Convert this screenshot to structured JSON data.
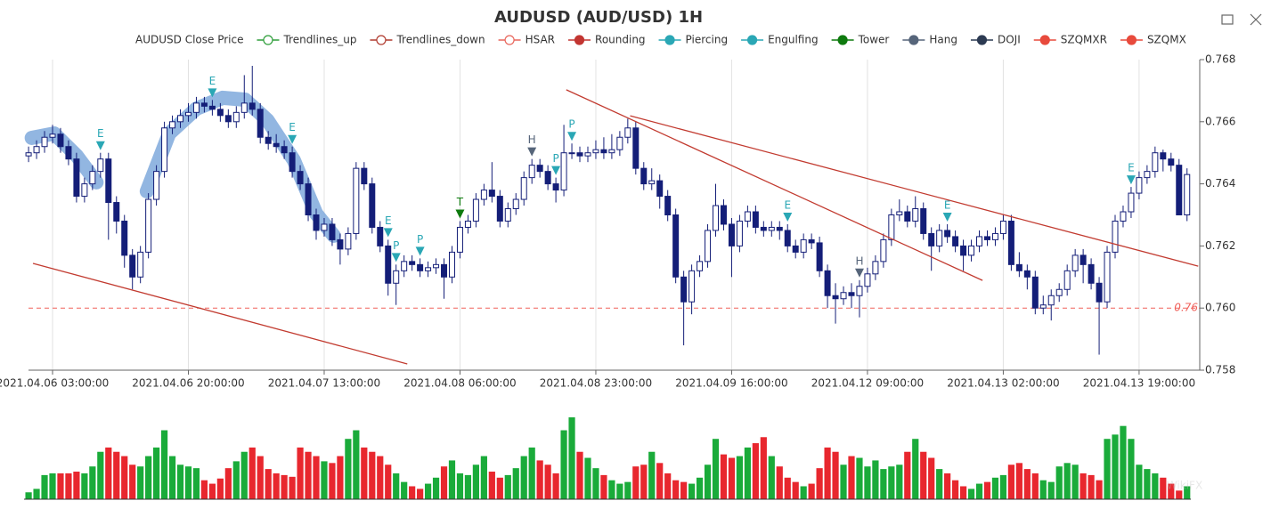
{
  "chart_data": {
    "type": "candlestick",
    "title": "AUDUSD (AUD/USD) 1H",
    "legend": [
      {
        "name": "AUDUSD Close Price",
        "style": "none",
        "color": "#333333"
      },
      {
        "name": "Trendlines_up",
        "style": "hollow",
        "color": "#2e9e3a"
      },
      {
        "name": "Trendlines_down",
        "style": "hollow",
        "color": "#b03a2e"
      },
      {
        "name": "HSAR",
        "style": "hollow",
        "color": "#e8665c"
      },
      {
        "name": "Rounding",
        "style": "dot",
        "color": "#c23531"
      },
      {
        "name": "Piercing",
        "style": "dot",
        "color": "#2aa7b5"
      },
      {
        "name": "Engulfing",
        "style": "dot",
        "color": "#2aa7b5"
      },
      {
        "name": "Tower",
        "style": "dot",
        "color": "#0e7a0e"
      },
      {
        "name": "Hang",
        "style": "dot",
        "color": "#56657a"
      },
      {
        "name": "DOJI",
        "style": "dot",
        "color": "#2c3a52"
      },
      {
        "name": "SZQMXR",
        "style": "dot",
        "color": "#e84a3c"
      },
      {
        "name": "SZQMX",
        "style": "dot",
        "color": "#e84a3c"
      }
    ],
    "categories": [
      null,
      null,
      null,
      "2021.04.06 03:00:00",
      null,
      null,
      null,
      null,
      null,
      null,
      null,
      null,
      null,
      null,
      null,
      null,
      null,
      null,
      null,
      null,
      "2021.04.06 20:00:00",
      null,
      null,
      null,
      null,
      null,
      null,
      null,
      null,
      null,
      null,
      null,
      null,
      null,
      null,
      null,
      null,
      "2021.04.07 13:00:00",
      null,
      null,
      null,
      null,
      null,
      null,
      null,
      null,
      null,
      null,
      null,
      null,
      null,
      null,
      null,
      null,
      "2021.04.08 06:00:00",
      null,
      null,
      null,
      null,
      null,
      null,
      null,
      null,
      null,
      null,
      null,
      null,
      null,
      null,
      null,
      null,
      "2021.04.08 23:00:00",
      null,
      null,
      null,
      null,
      null,
      null,
      null,
      null,
      null,
      null,
      null,
      null,
      null,
      null,
      null,
      null,
      "2021.04.09 16:00:00",
      null,
      null,
      null,
      null,
      null,
      null,
      null,
      null,
      null,
      null,
      null,
      null,
      null,
      null,
      null,
      null,
      "2021.04.12 09:00:00",
      null,
      null,
      null,
      null,
      null,
      null,
      null,
      null,
      null,
      null,
      null,
      null,
      null,
      null,
      null,
      null,
      "2021.04.13 02:00:00",
      null,
      null,
      null,
      null,
      null,
      null,
      null,
      null,
      null,
      null,
      null,
      null,
      null,
      null,
      null,
      null,
      "2021.04.13 19:00:00",
      null,
      null,
      null,
      null,
      null,
      null
    ],
    "ohlc": [
      [
        0.7649,
        0.7652,
        0.7647,
        0.765
      ],
      [
        0.765,
        0.7654,
        0.7648,
        0.7652
      ],
      [
        0.7652,
        0.7657,
        0.765,
        0.7655
      ],
      [
        0.7655,
        0.7659,
        0.7653,
        0.7656
      ],
      [
        0.7656,
        0.7658,
        0.765,
        0.7652
      ],
      [
        0.7652,
        0.7654,
        0.7646,
        0.7648
      ],
      [
        0.7648,
        0.765,
        0.7634,
        0.7636
      ],
      [
        0.7636,
        0.7642,
        0.7634,
        0.764
      ],
      [
        0.764,
        0.7646,
        0.7638,
        0.7644
      ],
      [
        0.7644,
        0.765,
        0.7642,
        0.7648
      ],
      [
        0.7648,
        0.765,
        0.7622,
        0.7634
      ],
      [
        0.7634,
        0.7636,
        0.7624,
        0.7628
      ],
      [
        0.7628,
        0.763,
        0.7613,
        0.7617
      ],
      [
        0.7617,
        0.7619,
        0.7606,
        0.761
      ],
      [
        0.761,
        0.762,
        0.7608,
        0.7618
      ],
      [
        0.7618,
        0.7637,
        0.7616,
        0.7635
      ],
      [
        0.7635,
        0.7646,
        0.7633,
        0.7644
      ],
      [
        0.7644,
        0.766,
        0.7642,
        0.7658
      ],
      [
        0.7658,
        0.7662,
        0.7656,
        0.766
      ],
      [
        0.766,
        0.7664,
        0.7658,
        0.7662
      ],
      [
        0.7662,
        0.7666,
        0.766,
        0.7663
      ],
      [
        0.7663,
        0.7668,
        0.7661,
        0.7666
      ],
      [
        0.7666,
        0.7668,
        0.7663,
        0.7665
      ],
      [
        0.7665,
        0.7667,
        0.7662,
        0.7664
      ],
      [
        0.7664,
        0.7666,
        0.766,
        0.7662
      ],
      [
        0.7662,
        0.7664,
        0.7658,
        0.766
      ],
      [
        0.766,
        0.7665,
        0.7658,
        0.7663
      ],
      [
        0.7663,
        0.7675,
        0.7661,
        0.7666
      ],
      [
        0.7666,
        0.7678,
        0.7662,
        0.7664
      ],
      [
        0.7664,
        0.7666,
        0.7653,
        0.7655
      ],
      [
        0.7655,
        0.7657,
        0.7651,
        0.7653
      ],
      [
        0.7653,
        0.7656,
        0.765,
        0.7652
      ],
      [
        0.7652,
        0.7654,
        0.7648,
        0.765
      ],
      [
        0.765,
        0.7652,
        0.7642,
        0.7644
      ],
      [
        0.7644,
        0.7646,
        0.7638,
        0.764
      ],
      [
        0.764,
        0.7642,
        0.7628,
        0.763
      ],
      [
        0.763,
        0.7632,
        0.7622,
        0.7625
      ],
      [
        0.7625,
        0.7629,
        0.7623,
        0.7627
      ],
      [
        0.7627,
        0.7629,
        0.762,
        0.7622
      ],
      [
        0.7622,
        0.7624,
        0.7614,
        0.7619
      ],
      [
        0.7619,
        0.7626,
        0.7617,
        0.7624
      ],
      [
        0.7624,
        0.7647,
        0.7622,
        0.7645
      ],
      [
        0.7645,
        0.7647,
        0.7638,
        0.764
      ],
      [
        0.764,
        0.7642,
        0.7624,
        0.7626
      ],
      [
        0.7626,
        0.7628,
        0.7618,
        0.762
      ],
      [
        0.762,
        0.7622,
        0.7604,
        0.7608
      ],
      [
        0.7608,
        0.7614,
        0.7601,
        0.7612
      ],
      [
        0.7612,
        0.7617,
        0.761,
        0.7615
      ],
      [
        0.7615,
        0.7617,
        0.7612,
        0.7614
      ],
      [
        0.7614,
        0.7616,
        0.761,
        0.7612
      ],
      [
        0.7612,
        0.7615,
        0.761,
        0.7613
      ],
      [
        0.7613,
        0.7616,
        0.7611,
        0.7614
      ],
      [
        0.7614,
        0.7616,
        0.7603,
        0.761
      ],
      [
        0.761,
        0.762,
        0.7608,
        0.7618
      ],
      [
        0.7618,
        0.7628,
        0.7616,
        0.7626
      ],
      [
        0.7626,
        0.763,
        0.7624,
        0.7628
      ],
      [
        0.7628,
        0.7637,
        0.7626,
        0.7635
      ],
      [
        0.7635,
        0.764,
        0.7633,
        0.7638
      ],
      [
        0.7638,
        0.7647,
        0.7634,
        0.7636
      ],
      [
        0.7636,
        0.7638,
        0.7626,
        0.7628
      ],
      [
        0.7628,
        0.7634,
        0.7626,
        0.7632
      ],
      [
        0.7632,
        0.7637,
        0.763,
        0.7635
      ],
      [
        0.7635,
        0.7644,
        0.7633,
        0.7642
      ],
      [
        0.7642,
        0.7648,
        0.764,
        0.7646
      ],
      [
        0.7646,
        0.7648,
        0.7642,
        0.7644
      ],
      [
        0.7644,
        0.7646,
        0.7638,
        0.764
      ],
      [
        0.764,
        0.7642,
        0.7634,
        0.7638
      ],
      [
        0.7638,
        0.7659,
        0.7636,
        0.765
      ],
      [
        0.765,
        0.7653,
        0.7648,
        0.765
      ],
      [
        0.765,
        0.7652,
        0.7647,
        0.7649
      ],
      [
        0.7649,
        0.7652,
        0.7647,
        0.765
      ],
      [
        0.765,
        0.7654,
        0.7648,
        0.7651
      ],
      [
        0.7651,
        0.7655,
        0.7648,
        0.765
      ],
      [
        0.765,
        0.7656,
        0.7648,
        0.7651
      ],
      [
        0.7651,
        0.7657,
        0.7649,
        0.7655
      ],
      [
        0.7655,
        0.7661,
        0.7653,
        0.7658
      ],
      [
        0.7658,
        0.766,
        0.7643,
        0.7645
      ],
      [
        0.7645,
        0.7647,
        0.7638,
        0.764
      ],
      [
        0.764,
        0.7645,
        0.7638,
        0.7641
      ],
      [
        0.7641,
        0.7643,
        0.7632,
        0.7636
      ],
      [
        0.7636,
        0.7638,
        0.7628,
        0.763
      ],
      [
        0.763,
        0.7632,
        0.7608,
        0.761
      ],
      [
        0.761,
        0.7612,
        0.7588,
        0.7602
      ],
      [
        0.7602,
        0.7614,
        0.7598,
        0.7612
      ],
      [
        0.7612,
        0.7617,
        0.761,
        0.7615
      ],
      [
        0.7615,
        0.7627,
        0.7613,
        0.7625
      ],
      [
        0.7625,
        0.764,
        0.7623,
        0.7633
      ],
      [
        0.7633,
        0.7635,
        0.7625,
        0.7627
      ],
      [
        0.7627,
        0.7629,
        0.761,
        0.762
      ],
      [
        0.762,
        0.763,
        0.7618,
        0.7628
      ],
      [
        0.7628,
        0.7633,
        0.7626,
        0.7631
      ],
      [
        0.7631,
        0.7633,
        0.7624,
        0.7626
      ],
      [
        0.7626,
        0.7628,
        0.7623,
        0.7625
      ],
      [
        0.7625,
        0.7628,
        0.7623,
        0.7626
      ],
      [
        0.7626,
        0.7628,
        0.7622,
        0.7625
      ],
      [
        0.7625,
        0.7627,
        0.7618,
        0.762
      ],
      [
        0.762,
        0.7622,
        0.7616,
        0.7618
      ],
      [
        0.7618,
        0.7624,
        0.7616,
        0.7622
      ],
      [
        0.7622,
        0.7624,
        0.7619,
        0.7621
      ],
      [
        0.7621,
        0.7623,
        0.761,
        0.7612
      ],
      [
        0.7612,
        0.7614,
        0.76,
        0.7604
      ],
      [
        0.7604,
        0.7608,
        0.7595,
        0.7603
      ],
      [
        0.7603,
        0.7607,
        0.7601,
        0.7605
      ],
      [
        0.7605,
        0.7608,
        0.76,
        0.7604
      ],
      [
        0.7604,
        0.7609,
        0.7597,
        0.7607
      ],
      [
        0.7607,
        0.7613,
        0.7605,
        0.7611
      ],
      [
        0.7611,
        0.7617,
        0.7609,
        0.7615
      ],
      [
        0.7615,
        0.7624,
        0.7613,
        0.7622
      ],
      [
        0.7622,
        0.7632,
        0.762,
        0.763
      ],
      [
        0.763,
        0.7635,
        0.7628,
        0.7631
      ],
      [
        0.7631,
        0.7633,
        0.7626,
        0.7628
      ],
      [
        0.7628,
        0.7636,
        0.7626,
        0.7632
      ],
      [
        0.7632,
        0.7634,
        0.7622,
        0.7624
      ],
      [
        0.7624,
        0.7626,
        0.7612,
        0.762
      ],
      [
        0.762,
        0.7627,
        0.7618,
        0.7625
      ],
      [
        0.7625,
        0.7627,
        0.7621,
        0.7623
      ],
      [
        0.7623,
        0.7625,
        0.7618,
        0.762
      ],
      [
        0.762,
        0.7622,
        0.7612,
        0.7617
      ],
      [
        0.7617,
        0.7622,
        0.7615,
        0.762
      ],
      [
        0.762,
        0.7625,
        0.7618,
        0.7623
      ],
      [
        0.7623,
        0.7625,
        0.762,
        0.7622
      ],
      [
        0.7622,
        0.7626,
        0.762,
        0.7624
      ],
      [
        0.7624,
        0.763,
        0.7622,
        0.7628
      ],
      [
        0.7628,
        0.763,
        0.7612,
        0.7614
      ],
      [
        0.7614,
        0.7618,
        0.761,
        0.7612
      ],
      [
        0.7612,
        0.7614,
        0.7606,
        0.761
      ],
      [
        0.761,
        0.7612,
        0.7598,
        0.76
      ],
      [
        0.76,
        0.7604,
        0.7598,
        0.7601
      ],
      [
        0.7601,
        0.7606,
        0.7596,
        0.7604
      ],
      [
        0.7604,
        0.7608,
        0.7602,
        0.7606
      ],
      [
        0.7606,
        0.7614,
        0.7604,
        0.7612
      ],
      [
        0.7612,
        0.7619,
        0.761,
        0.7617
      ],
      [
        0.7617,
        0.7619,
        0.7608,
        0.7614
      ],
      [
        0.7614,
        0.7616,
        0.7606,
        0.7608
      ],
      [
        0.7608,
        0.761,
        0.7585,
        0.7602
      ],
      [
        0.7602,
        0.762,
        0.76,
        0.7618
      ],
      [
        0.7618,
        0.763,
        0.7616,
        0.7628
      ],
      [
        0.7628,
        0.7633,
        0.7626,
        0.7631
      ],
      [
        0.7631,
        0.7639,
        0.7629,
        0.7637
      ],
      [
        0.7637,
        0.7644,
        0.7635,
        0.7642
      ],
      [
        0.7642,
        0.7646,
        0.764,
        0.7644
      ],
      [
        0.7644,
        0.7652,
        0.7642,
        0.765
      ],
      [
        0.765,
        0.7651,
        0.7644,
        0.7648
      ],
      [
        0.7648,
        0.765,
        0.7644,
        0.7646
      ],
      [
        0.7646,
        0.7648,
        0.763,
        0.763
      ],
      [
        0.763,
        0.7645,
        0.7628,
        0.7643
      ]
    ],
    "candle_color": "#141e78",
    "volume": {
      "values": [
        8,
        12,
        28,
        30,
        30,
        30,
        32,
        30,
        38,
        55,
        60,
        55,
        50,
        40,
        38,
        50,
        60,
        80,
        50,
        40,
        38,
        36,
        22,
        18,
        24,
        36,
        44,
        55,
        60,
        50,
        35,
        30,
        28,
        26,
        60,
        55,
        50,
        44,
        42,
        50,
        70,
        80,
        60,
        55,
        50,
        40,
        30,
        20,
        15,
        12,
        18,
        25,
        38,
        45,
        30,
        28,
        40,
        50,
        32,
        25,
        28,
        36,
        50,
        60,
        45,
        40,
        30,
        80,
        95,
        55,
        48,
        36,
        28,
        22,
        18,
        20,
        38,
        40,
        55,
        42,
        30,
        22,
        20,
        18,
        25,
        40,
        70,
        52,
        48,
        50,
        60,
        65,
        72,
        50,
        38,
        25,
        20,
        15,
        18,
        36,
        60,
        55,
        40,
        50,
        48,
        38,
        45,
        35,
        38,
        40,
        55,
        70,
        55,
        48,
        35,
        30,
        22,
        15,
        12,
        18,
        20,
        25,
        28,
        40,
        42,
        35,
        30,
        22,
        20,
        38,
        42,
        40,
        30,
        28,
        22,
        70,
        75,
        85,
        70,
        40,
        35,
        30,
        25,
        18,
        10,
        15
      ],
      "up_color": "#1aab3a",
      "down_color": "#e8272e"
    },
    "ylim": [
      0.758,
      0.768
    ],
    "yticks": [
      0.758,
      {
        "value": 0.76,
        "label": "0.760"
      },
      0.762,
      0.764,
      0.766,
      0.768
    ],
    "grid": true,
    "hsar": {
      "value": 0.76,
      "color": "#f0605a"
    },
    "trendlines": {
      "color": "#c23b30",
      "lines": [
        {
          "x": [
            0.55,
            47.4
          ],
          "y": [
            0.76144,
            0.7582
          ]
        },
        {
          "x": [
            67.3,
            119.4
          ],
          "y": [
            0.76703,
            0.76089
          ]
        },
        {
          "x": [
            75.3,
            146.4
          ],
          "y": [
            0.76619,
            0.76135
          ]
        }
      ]
    },
    "rounding": {
      "color": "#7fa9dc",
      "arcs": [
        {
          "x": [
            0.4,
            3.2,
            6,
            8.5
          ],
          "y": [
            0.76548,
            0.76562,
            0.76491,
            0.76405
          ]
        },
        {
          "x": [
            14.8,
            17.6,
            21.0,
            24.3,
            27.1,
            29.9,
            33.2,
            36.0,
            38.2
          ],
          "y": [
            0.76376,
            0.76562,
            0.76642,
            0.76677,
            0.76671,
            0.76605,
            0.76476,
            0.76304,
            0.76233
          ]
        }
      ]
    },
    "patterns": [
      {
        "label": "E",
        "index": 9,
        "color": "#2aa7b5"
      },
      {
        "label": "E",
        "index": 23,
        "color": "#2aa7b5"
      },
      {
        "label": "E",
        "index": 33,
        "color": "#2aa7b5"
      },
      {
        "label": "E",
        "index": 45,
        "color": "#2aa7b5"
      },
      {
        "label": "P",
        "index": 46,
        "color": "#2aa7b5"
      },
      {
        "label": "P",
        "index": 49,
        "color": "#2aa7b5"
      },
      {
        "label": "T",
        "index": 54,
        "color": "#0e7a0e"
      },
      {
        "label": "H",
        "index": 63,
        "color": "#56657a"
      },
      {
        "label": "P",
        "index": 66,
        "color": "#2aa7b5"
      },
      {
        "label": "P",
        "index": 68,
        "color": "#2aa7b5"
      },
      {
        "label": "E",
        "index": 95,
        "color": "#2aa7b5"
      },
      {
        "label": "H",
        "index": 104,
        "color": "#56657a"
      },
      {
        "label": "E",
        "index": 115,
        "color": "#2aa7b5"
      },
      {
        "label": "E",
        "index": 138,
        "color": "#2aa7b5"
      }
    ],
    "watermark": "WikiFX"
  }
}
